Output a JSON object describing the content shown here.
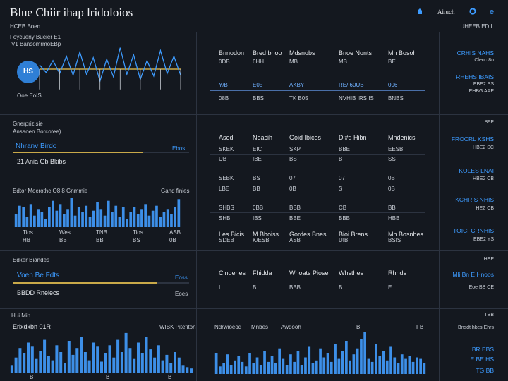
{
  "header": {
    "title": "Blue Chiir ihap lridoloios",
    "user_label": "Aiıuch",
    "sub_left": "HCEB Boen",
    "sub_right": "UHEEB EDIL"
  },
  "panel1": {
    "title": "Foycueny Bueier E1",
    "subtitle": "V1 BansomrmoEBp",
    "badge": "HS",
    "footer": "Ooe EoIS"
  },
  "table1": {
    "headers": [
      "Bnnodon",
      "Bred bnoo",
      "Mdsnobs",
      "Bnoe Nonts",
      "Mh Bosoh"
    ],
    "r1": [
      "0DB",
      "6HH",
      "MB",
      "MB",
      "BE"
    ],
    "r2": [
      "Y/B",
      "E05",
      "AKBY",
      "RE/ 60UB",
      "006"
    ],
    "r3": [
      "08B",
      "BBS",
      "TK B05",
      "NVHIB IRS IS",
      "BNBS"
    ]
  },
  "right1": {
    "link1": "CRHIS NAHS",
    "sub1": "Cleoc 8n",
    "link2": "RHEHS IBAIS",
    "sub2": "EBE2 SS",
    "sub3": "EHBG AAE"
  },
  "panel2": {
    "title": "Gnerprizisie",
    "subtitle": "Ansaoen Borcotee)",
    "bar_label": "Nhranv Birdo",
    "bar_value": "Ebos",
    "bar_fraction": 0.74,
    "note": "21 Ania Gb Bkibs"
  },
  "table2": {
    "headers": [
      "Ased",
      "Noacih",
      "Goid Ibicos",
      "Dl#d Hibn",
      "Mhdenics"
    ],
    "r1": [
      "SKEK",
      "EIC",
      "SKP",
      "BBE",
      "EESB"
    ],
    "r2": [
      "UB",
      "IBE",
      "BS",
      "B",
      "SS"
    ],
    "r3": [
      "SEBK",
      "BS",
      "07",
      "07",
      "0B"
    ],
    "r4": [
      "LBE",
      "BB",
      "0B",
      "S",
      "0B"
    ],
    "r5": [
      "SHBS",
      "0BB",
      "BBB",
      "CB",
      "BB"
    ],
    "r6": [
      "SHB",
      "IBS",
      "BBE",
      "BBB",
      "HBB"
    ]
  },
  "right2": {
    "top": "B9P",
    "link1": "FROCRL KSHS",
    "sub1": "HBE2 SC",
    "link2": "KOLES LNAI",
    "sub2": "HBE2 CB",
    "link3": "KCHRIS NHIS",
    "sub3": "HEZ CB",
    "link4": "TOICFCRNHIS",
    "sub4": "EBE2 YS"
  },
  "panel3": {
    "title": "Edtor Mocrothc O8 8 Gnmmie",
    "value": "Gand finies",
    "xlabels": [
      "Tios",
      "Wes",
      "TNB",
      "Tios",
      "ASB"
    ],
    "xlabels2": [
      "HB",
      "BB",
      "BB",
      "BS",
      "0B"
    ]
  },
  "table3": {
    "headers": [
      "Les Bicis",
      "M Bboiss",
      "Gordes Bnes",
      "Bioi Brens",
      "Mh Bosnhes"
    ],
    "r1": [
      "SDEB",
      "K/ESB",
      "ASB",
      "UIB",
      "BSIS"
    ]
  },
  "panel4": {
    "title": "Edker Biandes",
    "bar_label": "Voen Be Fdts",
    "bar_value": "Eoss",
    "bar_fraction": 0.82,
    "note": "BBDD Rneiecs",
    "note_value": "Eoes"
  },
  "table4": {
    "headers": [
      "Cindenes",
      "Fhidda",
      "Whoats Piose",
      "Whsthes",
      "Rhnds"
    ],
    "r1": [
      "I",
      "B",
      "BBB",
      "B",
      "E"
    ]
  },
  "right3": {
    "top": "HEE",
    "link1": "Mli Bn E Hnoos",
    "sub1": "Eoe BB CE"
  },
  "panel5": {
    "title": "Hui Mih",
    "subtitle": "Erixdxbn 01R",
    "value": "WIBK Pitefiton",
    "xl1": "B",
    "xl2": "B",
    "xl3": "B"
  },
  "panel6": {
    "title1": "Ndrwioeod",
    "title2": "Mnbes",
    "title3": "Awdooh",
    "mark": "B",
    "mark2": "FB"
  },
  "right4": {
    "top": "TBB",
    "link0": "Bnsdt hkes Ehrs",
    "link1": "BR EBS",
    "link2": "E BE HS",
    "sub": "TG BB"
  },
  "chart_data": [
    {
      "type": "line",
      "values": [
        3,
        4,
        6,
        5,
        9,
        7,
        12,
        6,
        8,
        14,
        7,
        9,
        15,
        6,
        10,
        12,
        6,
        8,
        13,
        5,
        9,
        7
      ]
    },
    {
      "type": "bar",
      "values": [
        8,
        13,
        12,
        6,
        14,
        7,
        11,
        9,
        5,
        12,
        16,
        10,
        14,
        8,
        11,
        18,
        7,
        12,
        9,
        13,
        6,
        10,
        15,
        11,
        7,
        16,
        9,
        13,
        6,
        12,
        5,
        9,
        12,
        8,
        11,
        14,
        7,
        10,
        13,
        6,
        9,
        11,
        8,
        12,
        17
      ]
    },
    {
      "type": "bar",
      "values": [
        10,
        22,
        36,
        28,
        44,
        38,
        20,
        32,
        48,
        24,
        18,
        40,
        30,
        14,
        46,
        26,
        36,
        52,
        30,
        18,
        44,
        38,
        16,
        28,
        40,
        22,
        48,
        30,
        58,
        36,
        20,
        44,
        28,
        52,
        34,
        22,
        40,
        18,
        26,
        14,
        30,
        22,
        10,
        8,
        6
      ]
    },
    {
      "type": "bar",
      "values": [
        28,
        10,
        14,
        26,
        12,
        18,
        24,
        16,
        10,
        28,
        14,
        22,
        12,
        30,
        16,
        24,
        14,
        34,
        20,
        12,
        26,
        16,
        30,
        12,
        22,
        36,
        14,
        18,
        34,
        22,
        28,
        16,
        40,
        20,
        30,
        44,
        18,
        26,
        34,
        46,
        56,
        20,
        16,
        40,
        24,
        30,
        18,
        36,
        22,
        14,
        26,
        20,
        24,
        16,
        22,
        20,
        14
      ]
    }
  ]
}
